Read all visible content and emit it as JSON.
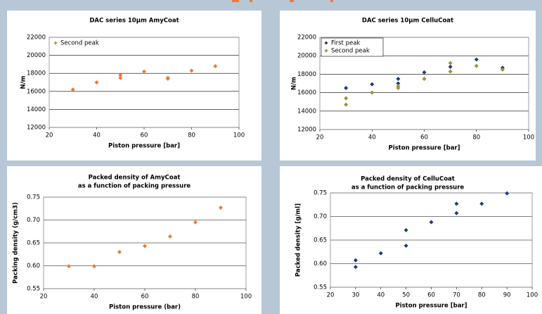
{
  "chart_data": [
    {
      "type": "scatter",
      "title": [
        "DAC series 10µm AmyCoat"
      ],
      "x_label": "Piston pressure [bar]",
      "y_label": "N/m",
      "xlim": [
        20,
        100
      ],
      "xticks": [
        20,
        40,
        60,
        80,
        100
      ],
      "ylim": [
        12000,
        22000
      ],
      "yticks": [
        12000,
        14000,
        16000,
        18000,
        20000,
        22000
      ],
      "grid": true,
      "legend": "upper left",
      "series": [
        {
          "name": "Second peak",
          "color": "#ec7b35",
          "x": [
            30,
            40,
            50,
            50,
            60,
            70,
            70,
            80,
            90
          ],
          "values": [
            16200,
            17000,
            17500,
            17800,
            18200,
            17400,
            17500,
            18300,
            18800
          ]
        }
      ]
    },
    {
      "type": "scatter",
      "title": [
        "DAC series 10µm CelluCoat"
      ],
      "x_label": "Piston pressure [bar]",
      "y_label": "N/m",
      "xlim": [
        20,
        100
      ],
      "xticks": [
        20,
        40,
        60,
        80,
        100
      ],
      "ylim": [
        12000,
        22000
      ],
      "yticks": [
        12000,
        14000,
        16000,
        18000,
        20000,
        22000
      ],
      "grid": true,
      "legend": "upper left",
      "series": [
        {
          "name": "First peak",
          "color": "#1f3a80",
          "x": [
            30,
            40,
            50,
            50,
            60,
            70,
            80,
            90
          ],
          "values": [
            16500,
            16900,
            17500,
            17000,
            18200,
            18800,
            19600,
            18700
          ]
        },
        {
          "name": "Second peak",
          "color": "#9c9234",
          "x": [
            30,
            30,
            40,
            50,
            50,
            60,
            70,
            70,
            80,
            90
          ],
          "values": [
            15400,
            14700,
            16000,
            16700,
            16500,
            17500,
            19200,
            18300,
            18900,
            18500
          ]
        }
      ]
    },
    {
      "type": "scatter",
      "title": [
        "Packed density of AmyCoat",
        "as a function of packing pressure"
      ],
      "x_label": "Piston pressure (bar)",
      "y_label": "Packing density (g/cm3)",
      "xlim": [
        20,
        100
      ],
      "xticks": [
        20,
        40,
        60,
        80,
        100
      ],
      "ylim": [
        0.55,
        0.75
      ],
      "yticks": [
        0.55,
        {
          "value": 0.6,
          "label": "0.60"
        },
        0.65,
        {
          "value": 0.7,
          "label": "0.70"
        },
        0.75
      ],
      "grid": true,
      "series": [
        {
          "color": "#ec7b35",
          "x": [
            30,
            40,
            50,
            60,
            70,
            80,
            90
          ],
          "values": [
            0.599,
            0.599,
            0.63,
            0.643,
            0.664,
            0.695,
            0.727
          ]
        }
      ]
    },
    {
      "type": "scatter",
      "title": [
        "Packed density of CelluCoat",
        "as a function of packing pressure"
      ],
      "x_label": "Piston pressure [bar]",
      "y_label": "Packed density [g/ml]",
      "xlim": [
        20,
        100
      ],
      "xticks": [
        20,
        30,
        40,
        50,
        60,
        70,
        80,
        90,
        100
      ],
      "ylim": [
        0.55,
        0.75
      ],
      "yticks": [
        0.55,
        {
          "value": 0.6,
          "label": "0.60"
        },
        0.65,
        {
          "value": 0.7,
          "label": "0.70"
        },
        0.75
      ],
      "grid": true,
      "series": [
        {
          "color": "#1f3a80",
          "x": [
            30,
            30,
            40,
            50,
            50,
            60,
            70,
            70,
            80,
            90
          ],
          "values": [
            0.607,
            0.593,
            0.622,
            0.671,
            0.638,
            0.688,
            0.727,
            0.707,
            0.727,
            0.749
          ]
        }
      ]
    }
  ]
}
